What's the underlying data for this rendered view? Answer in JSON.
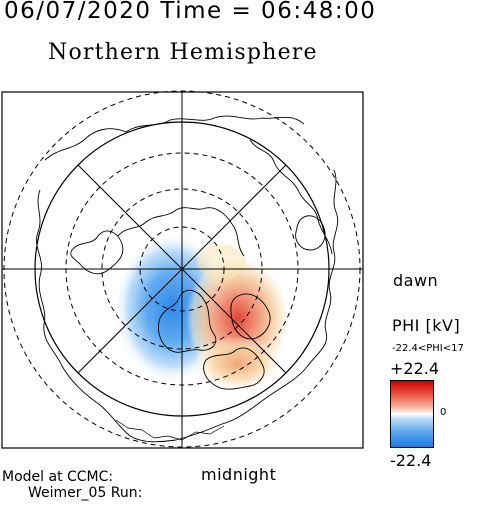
{
  "header": {
    "timestamp": "06/07/2020 Time = 06:48:00",
    "title": "Northern Hemisphere"
  },
  "labels": {
    "dawn": "dawn",
    "midnight": "midnight"
  },
  "footer": {
    "model_line_1": "Model at CCMC:",
    "model_line_2": "Weimer_05 Run:"
  },
  "colorbar": {
    "title": "PHI [kV]",
    "range_text": "-22.4<PHI<17",
    "max_label": "+22.4",
    "zero_label": "0",
    "min_label": "-22.4",
    "positive_color": "#e0302a",
    "negative_color": "#1e82e6",
    "neutral_color": "#ffffff"
  },
  "map": {
    "projection": "polar stereographic, north pole",
    "outer_circle": "solid",
    "latitude_rings": "dashed",
    "meridians": "every 45 degrees",
    "potential_min_kV": -22.4,
    "potential_max_kV": 17
  }
}
